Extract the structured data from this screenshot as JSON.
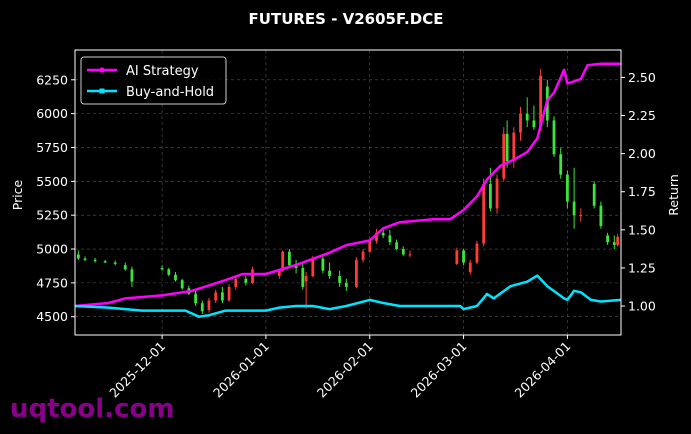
{
  "chart_data": {
    "type": "line",
    "title": "FUTURES - V2605F.DCE",
    "xlabel": "",
    "ylabel": "Price",
    "y2label": "Return",
    "xlim": [
      "2025-11-05",
      "2026-04-17"
    ],
    "ylim": [
      4365,
      6470
    ],
    "y2lim": [
      0.81,
      2.68
    ],
    "x_ticks": [
      "2025-12-01",
      "2026-01-01",
      "2026-02-01",
      "2026-03-01",
      "2026-04-01"
    ],
    "y_ticks": [
      4500,
      4750,
      5000,
      5250,
      5500,
      5750,
      6000,
      6250
    ],
    "y2_ticks": [
      1.0,
      1.25,
      1.5,
      1.75,
      2.0,
      2.25,
      2.5
    ],
    "grid": true,
    "legend_position": "top-left",
    "colors": {
      "background": "#000000",
      "up": "#ff3b3b",
      "down": "#39e639",
      "ai": "#ff00ff",
      "bh": "#00e5ff",
      "grid": "#555555"
    },
    "series": [
      {
        "name": "AI Strategy",
        "axis": "right",
        "color": "#ff00ff",
        "points": [
          [
            "2025-11-05",
            1.0
          ],
          [
            "2025-11-15",
            1.02
          ],
          [
            "2025-11-20",
            1.05
          ],
          [
            "2025-12-01",
            1.07
          ],
          [
            "2025-12-10",
            1.1
          ],
          [
            "2025-12-20",
            1.17
          ],
          [
            "2025-12-25",
            1.21
          ],
          [
            "2026-01-01",
            1.21
          ],
          [
            "2026-01-10",
            1.27
          ],
          [
            "2026-01-20",
            1.35
          ],
          [
            "2026-01-25",
            1.4
          ],
          [
            "2026-02-01",
            1.43
          ],
          [
            "2026-02-05",
            1.51
          ],
          [
            "2026-02-10",
            1.55
          ],
          [
            "2026-02-15",
            1.56
          ],
          [
            "2026-02-20",
            1.57
          ],
          [
            "2026-02-25",
            1.57
          ],
          [
            "2026-03-01",
            1.63
          ],
          [
            "2026-03-05",
            1.72
          ],
          [
            "2026-03-08",
            1.83
          ],
          [
            "2026-03-12",
            1.92
          ],
          [
            "2026-03-16",
            1.96
          ],
          [
            "2026-03-20",
            2.01
          ],
          [
            "2026-03-23",
            2.1
          ],
          [
            "2026-03-26",
            2.35
          ],
          [
            "2026-03-28",
            2.4
          ],
          [
            "2026-03-31",
            2.55
          ],
          [
            "2026-04-01",
            2.46
          ],
          [
            "2026-04-05",
            2.49
          ],
          [
            "2026-04-07",
            2.58
          ],
          [
            "2026-04-11",
            2.59
          ],
          [
            "2026-04-17",
            2.59
          ]
        ]
      },
      {
        "name": "Buy-and-Hold",
        "axis": "right",
        "color": "#00e5ff",
        "points": [
          [
            "2025-11-05",
            1.0
          ],
          [
            "2025-11-15",
            0.99
          ],
          [
            "2025-11-25",
            0.97
          ],
          [
            "2025-12-01",
            0.97
          ],
          [
            "2025-12-08",
            0.97
          ],
          [
            "2025-12-12",
            0.93
          ],
          [
            "2025-12-15",
            0.94
          ],
          [
            "2025-12-20",
            0.97
          ],
          [
            "2026-01-01",
            0.97
          ],
          [
            "2026-01-05",
            0.99
          ],
          [
            "2026-01-10",
            1.0
          ],
          [
            "2026-01-15",
            1.0
          ],
          [
            "2026-01-20",
            0.98
          ],
          [
            "2026-01-25",
            1.0
          ],
          [
            "2026-02-01",
            1.04
          ],
          [
            "2026-02-05",
            1.02
          ],
          [
            "2026-02-10",
            1.0
          ],
          [
            "2026-02-20",
            1.0
          ],
          [
            "2026-02-28",
            1.0
          ],
          [
            "2026-03-01",
            0.98
          ],
          [
            "2026-03-05",
            1.0
          ],
          [
            "2026-03-08",
            1.08
          ],
          [
            "2026-03-10",
            1.05
          ],
          [
            "2026-03-15",
            1.13
          ],
          [
            "2026-03-20",
            1.16
          ],
          [
            "2026-03-23",
            1.2
          ],
          [
            "2026-03-26",
            1.13
          ],
          [
            "2026-03-31",
            1.05
          ],
          [
            "2026-04-01",
            1.04
          ],
          [
            "2026-04-03",
            1.1
          ],
          [
            "2026-04-05",
            1.09
          ],
          [
            "2026-04-08",
            1.04
          ],
          [
            "2026-04-11",
            1.03
          ],
          [
            "2026-04-17",
            1.04
          ]
        ]
      },
      {
        "name": "Price",
        "axis": "left",
        "type": "candlestick",
        "ohlc": [
          [
            "2025-11-06",
            4960,
            4990,
            4920,
            4930
          ],
          [
            "2025-11-08",
            4930,
            4945,
            4910,
            4920
          ],
          [
            "2025-11-11",
            4920,
            4935,
            4900,
            4910
          ],
          [
            "2025-11-14",
            4910,
            4920,
            4895,
            4900
          ],
          [
            "2025-11-17",
            4900,
            4915,
            4880,
            4890
          ],
          [
            "2025-11-20",
            4880,
            4900,
            4840,
            4850
          ],
          [
            "2025-11-22",
            4850,
            4870,
            4720,
            4760
          ],
          [
            "2025-12-01",
            4860,
            4880,
            4840,
            4850
          ],
          [
            "2025-12-03",
            4850,
            4860,
            4800,
            4810
          ],
          [
            "2025-12-05",
            4810,
            4830,
            4760,
            4770
          ],
          [
            "2025-12-07",
            4770,
            4780,
            4700,
            4710
          ],
          [
            "2025-12-09",
            4710,
            4730,
            4660,
            4670
          ],
          [
            "2025-12-11",
            4670,
            4690,
            4580,
            4600
          ],
          [
            "2025-12-13",
            4600,
            4620,
            4520,
            4540
          ],
          [
            "2025-12-15",
            4550,
            4640,
            4530,
            4620
          ],
          [
            "2025-12-17",
            4620,
            4700,
            4600,
            4680
          ],
          [
            "2025-12-19",
            4680,
            4720,
            4600,
            4620
          ],
          [
            "2025-12-21",
            4620,
            4740,
            4610,
            4720
          ],
          [
            "2025-12-23",
            4720,
            4800,
            4700,
            4780
          ],
          [
            "2025-12-26",
            4780,
            4800,
            4730,
            4750
          ],
          [
            "2025-12-28",
            4750,
            4870,
            4740,
            4850
          ],
          [
            "2026-01-05",
            4800,
            4850,
            4780,
            4840
          ],
          [
            "2026-01-06",
            4840,
            4990,
            4830,
            4980
          ],
          [
            "2026-01-08",
            4980,
            5000,
            4860,
            4880
          ],
          [
            "2026-01-10",
            4880,
            4920,
            4820,
            4860
          ],
          [
            "2026-01-12",
            4860,
            4900,
            4700,
            4720
          ],
          [
            "2026-01-13",
            4760,
            4830,
            4560,
            4800
          ],
          [
            "2026-01-15",
            4800,
            4950,
            4790,
            4930
          ],
          [
            "2026-01-18",
            4930,
            4960,
            4820,
            4840
          ],
          [
            "2026-01-20",
            4840,
            4900,
            4780,
            4800
          ],
          [
            "2026-01-23",
            4800,
            4840,
            4720,
            4750
          ],
          [
            "2026-01-25",
            4750,
            4780,
            4690,
            4720
          ],
          [
            "2026-01-28",
            4720,
            4940,
            4710,
            4920
          ],
          [
            "2026-01-30",
            4920,
            5000,
            4900,
            4980
          ],
          [
            "2026-02-01",
            4980,
            5080,
            4970,
            5060
          ],
          [
            "2026-02-03",
            5060,
            5150,
            5040,
            5120
          ],
          [
            "2026-02-05",
            5120,
            5160,
            5080,
            5100
          ],
          [
            "2026-02-07",
            5100,
            5140,
            5030,
            5050
          ],
          [
            "2026-02-09",
            5050,
            5070,
            4990,
            5000
          ],
          [
            "2026-02-11",
            5000,
            5020,
            4950,
            4960
          ],
          [
            "2026-02-13",
            4960,
            4990,
            4940,
            4960
          ],
          [
            "2026-02-27",
            4890,
            5010,
            4880,
            4990
          ],
          [
            "2026-03-01",
            4990,
            5000,
            4880,
            4900
          ],
          [
            "2026-03-03",
            4830,
            4920,
            4810,
            4900
          ],
          [
            "2026-03-05",
            4900,
            5060,
            4890,
            5040
          ],
          [
            "2026-03-07",
            5040,
            5520,
            5020,
            5480
          ],
          [
            "2026-03-09",
            5480,
            5600,
            5280,
            5300
          ],
          [
            "2026-03-11",
            5300,
            5550,
            5260,
            5520
          ],
          [
            "2026-03-13",
            5520,
            5900,
            5500,
            5850
          ],
          [
            "2026-03-14",
            5850,
            5950,
            5600,
            5650
          ],
          [
            "2026-03-16",
            5650,
            5900,
            5600,
            5860
          ],
          [
            "2026-03-18",
            5860,
            6050,
            5800,
            6000
          ],
          [
            "2026-03-20",
            6000,
            6120,
            5900,
            5950
          ],
          [
            "2026-03-22",
            5950,
            6060,
            5880,
            5900
          ],
          [
            "2026-03-24",
            5900,
            6330,
            5870,
            6280
          ],
          [
            "2026-03-26",
            6200,
            6250,
            5900,
            5950
          ],
          [
            "2026-03-28",
            5950,
            5980,
            5680,
            5700
          ],
          [
            "2026-03-30",
            5700,
            5750,
            5520,
            5550
          ],
          [
            "2026-04-01",
            5550,
            5580,
            5300,
            5350
          ],
          [
            "2026-04-03",
            5350,
            5600,
            5150,
            5250
          ],
          [
            "2026-04-05",
            5250,
            5300,
            5200,
            5250
          ],
          [
            "2026-04-09",
            5480,
            5500,
            5300,
            5320
          ],
          [
            "2026-04-11",
            5320,
            5350,
            5150,
            5170
          ],
          [
            "2026-04-13",
            5100,
            5120,
            5030,
            5050
          ],
          [
            "2026-04-15",
            5050,
            5100,
            5000,
            5030
          ],
          [
            "2026-04-16",
            5030,
            5110,
            5020,
            5090
          ]
        ]
      }
    ]
  },
  "watermark": "uqtool.com"
}
